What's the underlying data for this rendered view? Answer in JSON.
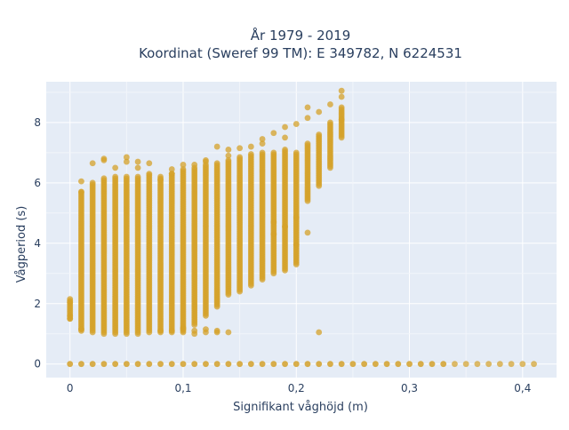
{
  "chart_data": {
    "type": "scatter",
    "title_line1": "År 1979 - 2019",
    "title_line2": "Koordinat (Sweref 99 TM): E 349782, N 6224531",
    "xlabel": "Signifikant våghöjd (m)",
    "ylabel": "Vågperiod (s)",
    "xlim": [
      -0.021,
      0.43
    ],
    "ylim": [
      -0.45,
      9.35
    ],
    "x_ticks": [
      0,
      0.1,
      0.2,
      0.3,
      0.4
    ],
    "x_tick_labels": [
      "0",
      "0,1",
      "0,2",
      "0,3",
      "0,4"
    ],
    "y_ticks": [
      0,
      2,
      4,
      6,
      8
    ],
    "y_tick_labels": [
      "0",
      "2",
      "4",
      "6",
      "8"
    ],
    "grid": true,
    "background": "#e5ecf6",
    "marker_color": "#d4a12a",
    "columns": [
      {
        "x": 0.0,
        "y_min": 1.5,
        "y_max": 2.15
      },
      {
        "x": 0.01,
        "y_min": 1.1,
        "y_max": 5.7
      },
      {
        "x": 0.02,
        "y_min": 1.05,
        "y_max": 6.0
      },
      {
        "x": 0.03,
        "y_min": 1.0,
        "y_max": 6.15
      },
      {
        "x": 0.04,
        "y_min": 1.0,
        "y_max": 6.2
      },
      {
        "x": 0.05,
        "y_min": 1.0,
        "y_max": 6.2
      },
      {
        "x": 0.06,
        "y_min": 1.0,
        "y_max": 6.2
      },
      {
        "x": 0.07,
        "y_min": 1.05,
        "y_max": 6.25
      },
      {
        "x": 0.08,
        "y_min": 1.05,
        "y_max": 6.2
      },
      {
        "x": 0.09,
        "y_min": 1.05,
        "y_max": 6.3
      },
      {
        "x": 0.1,
        "y_min": 1.1,
        "y_max": 6.45
      },
      {
        "x": 0.11,
        "y_min": 1.3,
        "y_max": 6.5
      },
      {
        "x": 0.12,
        "y_min": 1.6,
        "y_max": 6.6
      },
      {
        "x": 0.13,
        "y_min": 1.9,
        "y_max": 6.65
      },
      {
        "x": 0.14,
        "y_min": 2.3,
        "y_max": 6.75
      },
      {
        "x": 0.15,
        "y_min": 2.4,
        "y_max": 6.85
      },
      {
        "x": 0.16,
        "y_min": 2.6,
        "y_max": 6.95
      },
      {
        "x": 0.17,
        "y_min": 2.8,
        "y_max": 7.0
      },
      {
        "x": 0.18,
        "y_min": 3.0,
        "y_max": 7.0
      },
      {
        "x": 0.19,
        "y_min": 3.1,
        "y_max": 7.1
      },
      {
        "x": 0.2,
        "y_min": 3.3,
        "y_max": 7.0
      },
      {
        "x": 0.21,
        "y_min": 5.4,
        "y_max": 7.3
      },
      {
        "x": 0.22,
        "y_min": 5.9,
        "y_max": 7.6
      },
      {
        "x": 0.23,
        "y_min": 6.5,
        "y_max": 8.0
      },
      {
        "x": 0.24,
        "y_min": 7.5,
        "y_max": 8.5
      }
    ],
    "scatter_points": [
      [
        0.0,
        2.05
      ],
      [
        0.0,
        1.6
      ],
      [
        0.01,
        6.05
      ],
      [
        0.01,
        5.7
      ],
      [
        0.02,
        6.65
      ],
      [
        0.03,
        6.75
      ],
      [
        0.03,
        6.8
      ],
      [
        0.04,
        6.5
      ],
      [
        0.05,
        6.85
      ],
      [
        0.05,
        6.7
      ],
      [
        0.06,
        6.7
      ],
      [
        0.06,
        6.5
      ],
      [
        0.07,
        6.65
      ],
      [
        0.07,
        6.3
      ],
      [
        0.08,
        6.1
      ],
      [
        0.09,
        6.3
      ],
      [
        0.09,
        6.45
      ],
      [
        0.1,
        6.6
      ],
      [
        0.11,
        6.6
      ],
      [
        0.12,
        6.7
      ],
      [
        0.12,
        6.75
      ],
      [
        0.13,
        7.2
      ],
      [
        0.14,
        6.9
      ],
      [
        0.14,
        7.1
      ],
      [
        0.15,
        7.15
      ],
      [
        0.16,
        7.2
      ],
      [
        0.17,
        7.45
      ],
      [
        0.17,
        7.3
      ],
      [
        0.18,
        7.65
      ],
      [
        0.19,
        7.85
      ],
      [
        0.19,
        7.5
      ],
      [
        0.2,
        7.95
      ],
      [
        0.21,
        8.15
      ],
      [
        0.21,
        8.5
      ],
      [
        0.22,
        8.35
      ],
      [
        0.23,
        8.6
      ],
      [
        0.24,
        8.85
      ],
      [
        0.24,
        9.05
      ],
      [
        0.24,
        8.1
      ],
      [
        0.08,
        1.1
      ],
      [
        0.09,
        1.1
      ],
      [
        0.1,
        1.05
      ],
      [
        0.1,
        1.15
      ],
      [
        0.1,
        1.2
      ],
      [
        0.11,
        1.0
      ],
      [
        0.11,
        1.1
      ],
      [
        0.12,
        1.05
      ],
      [
        0.12,
        1.15
      ],
      [
        0.13,
        1.05
      ],
      [
        0.13,
        1.1
      ],
      [
        0.14,
        1.05
      ],
      [
        0.18,
        4.3
      ],
      [
        0.18,
        4.7
      ],
      [
        0.19,
        4.55
      ],
      [
        0.2,
        4.85
      ],
      [
        0.2,
        3.95
      ],
      [
        0.21,
        4.35
      ],
      [
        0.22,
        1.05
      ],
      [
        0.0,
        1.5
      ],
      [
        0.01,
        1.15
      ]
    ],
    "zero_row_x": [
      0.0,
      0.01,
      0.02,
      0.03,
      0.04,
      0.05,
      0.06,
      0.07,
      0.08,
      0.09,
      0.1,
      0.11,
      0.12,
      0.13,
      0.14,
      0.15,
      0.16,
      0.17,
      0.18,
      0.19,
      0.2,
      0.21,
      0.22,
      0.23,
      0.24,
      0.25,
      0.26,
      0.27,
      0.28,
      0.29,
      0.3,
      0.31,
      0.32,
      0.33,
      0.34,
      0.35,
      0.36,
      0.37,
      0.38,
      0.39,
      0.4,
      0.41
    ],
    "zero_row_y": 0
  }
}
